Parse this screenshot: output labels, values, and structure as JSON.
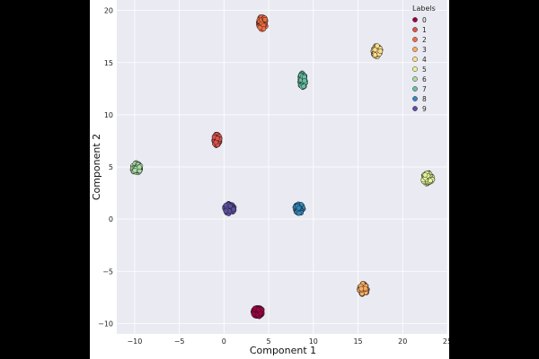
{
  "chart_data": {
    "type": "scatter",
    "title": "",
    "xlabel": "Component 1",
    "ylabel": "Component 2",
    "xlim": [
      -12,
      25
    ],
    "ylim": [
      -11,
      21
    ],
    "xticks": [
      -10,
      -5,
      0,
      5,
      10,
      15,
      20,
      25
    ],
    "yticks": [
      -10,
      -5,
      0,
      5,
      10,
      15,
      20
    ],
    "grid": true,
    "legend": {
      "title": "Labels",
      "placement": "top-right"
    },
    "series": [
      {
        "name": "0",
        "color": "#9e0142",
        "center": [
          3.8,
          -8.9
        ],
        "spread": [
          0.55,
          0.45
        ],
        "count": 90
      },
      {
        "name": "1",
        "color": "#e1524a",
        "center": [
          -0.8,
          7.6
        ],
        "spread": [
          0.35,
          0.55
        ],
        "count": 90
      },
      {
        "name": "2",
        "color": "#f46d43",
        "center": [
          4.3,
          18.8
        ],
        "spread": [
          0.45,
          0.65
        ],
        "count": 90
      },
      {
        "name": "3",
        "color": "#fdae61",
        "center": [
          15.6,
          -6.7
        ],
        "spread": [
          0.45,
          0.55
        ],
        "count": 90
      },
      {
        "name": "4",
        "color": "#fee08b",
        "center": [
          17.1,
          16.1
        ],
        "spread": [
          0.45,
          0.55
        ],
        "count": 90
      },
      {
        "name": "5",
        "color": "#e6f598",
        "center": [
          22.8,
          3.9
        ],
        "spread": [
          0.55,
          0.55
        ],
        "count": 90
      },
      {
        "name": "6",
        "color": "#abdda4",
        "center": [
          -9.8,
          4.9
        ],
        "spread": [
          0.5,
          0.5
        ],
        "count": 90
      },
      {
        "name": "7",
        "color": "#66c2a5",
        "center": [
          8.8,
          13.3
        ],
        "spread": [
          0.35,
          0.7
        ],
        "count": 90
      },
      {
        "name": "8",
        "color": "#3288bd",
        "center": [
          8.4,
          1.0
        ],
        "spread": [
          0.5,
          0.45
        ],
        "count": 90
      },
      {
        "name": "9",
        "color": "#5e4fa2",
        "center": [
          0.6,
          1.0
        ],
        "spread": [
          0.55,
          0.5
        ],
        "count": 90
      }
    ]
  }
}
